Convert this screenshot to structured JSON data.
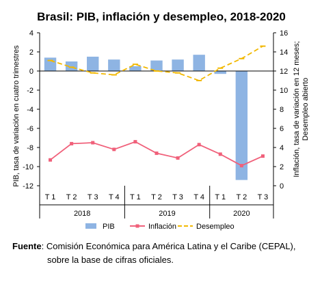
{
  "chart_data": {
    "type": "bar",
    "title": "Brasil: PIB, inflación y desempleo, 2018-2020",
    "ylabel_left": "PIB, tasa de variación en cuatro trimestres",
    "ylabel_right_line1": "Inflación, tasa de variación en 12 meses;",
    "ylabel_right_line2": "Desempleo abierto",
    "ylim_left": [
      -12,
      4
    ],
    "yticks_left": [
      4,
      2,
      0,
      -2,
      -4,
      -6,
      -8,
      -10,
      -12
    ],
    "ylim_right": [
      0,
      16
    ],
    "yticks_right": [
      16,
      14,
      12,
      10,
      8,
      6,
      4,
      2,
      0
    ],
    "categories": [
      "T 1",
      "T 2",
      "T 3",
      "T 4",
      "T 1",
      "T 2",
      "T 3",
      "T 4",
      "T 1",
      "T 2",
      "T 3"
    ],
    "years": [
      {
        "label": "2018",
        "count": 4
      },
      {
        "label": "2019",
        "count": 4
      },
      {
        "label": "2020",
        "count": 3
      }
    ],
    "series": [
      {
        "name": "PIB",
        "type": "bar",
        "axis": "left",
        "color": "#8EB4E3",
        "values": [
          1.4,
          1.0,
          1.5,
          1.2,
          0.5,
          1.1,
          1.2,
          1.7,
          -0.3,
          -11.4,
          null
        ]
      },
      {
        "name": "Inflación",
        "type": "line",
        "axis": "right",
        "color": "#F0607A",
        "values": [
          2.7,
          4.4,
          4.5,
          3.8,
          4.6,
          3.4,
          2.9,
          4.3,
          3.3,
          2.1,
          3.1
        ]
      },
      {
        "name": "Desempleo",
        "type": "line",
        "axis": "right",
        "color": "#F2B800",
        "dashed": true,
        "values": [
          13.1,
          12.4,
          11.8,
          11.6,
          12.7,
          12.0,
          11.8,
          11.0,
          12.3,
          13.3,
          14.6
        ]
      }
    ],
    "legend_position": "bottom",
    "grid": false
  },
  "source": {
    "label": "Fuente",
    "line1": ": Comisión Económica para América Latina y el Caribe (CEPAL),",
    "line2": "sobre la base de cifras oficiales."
  }
}
